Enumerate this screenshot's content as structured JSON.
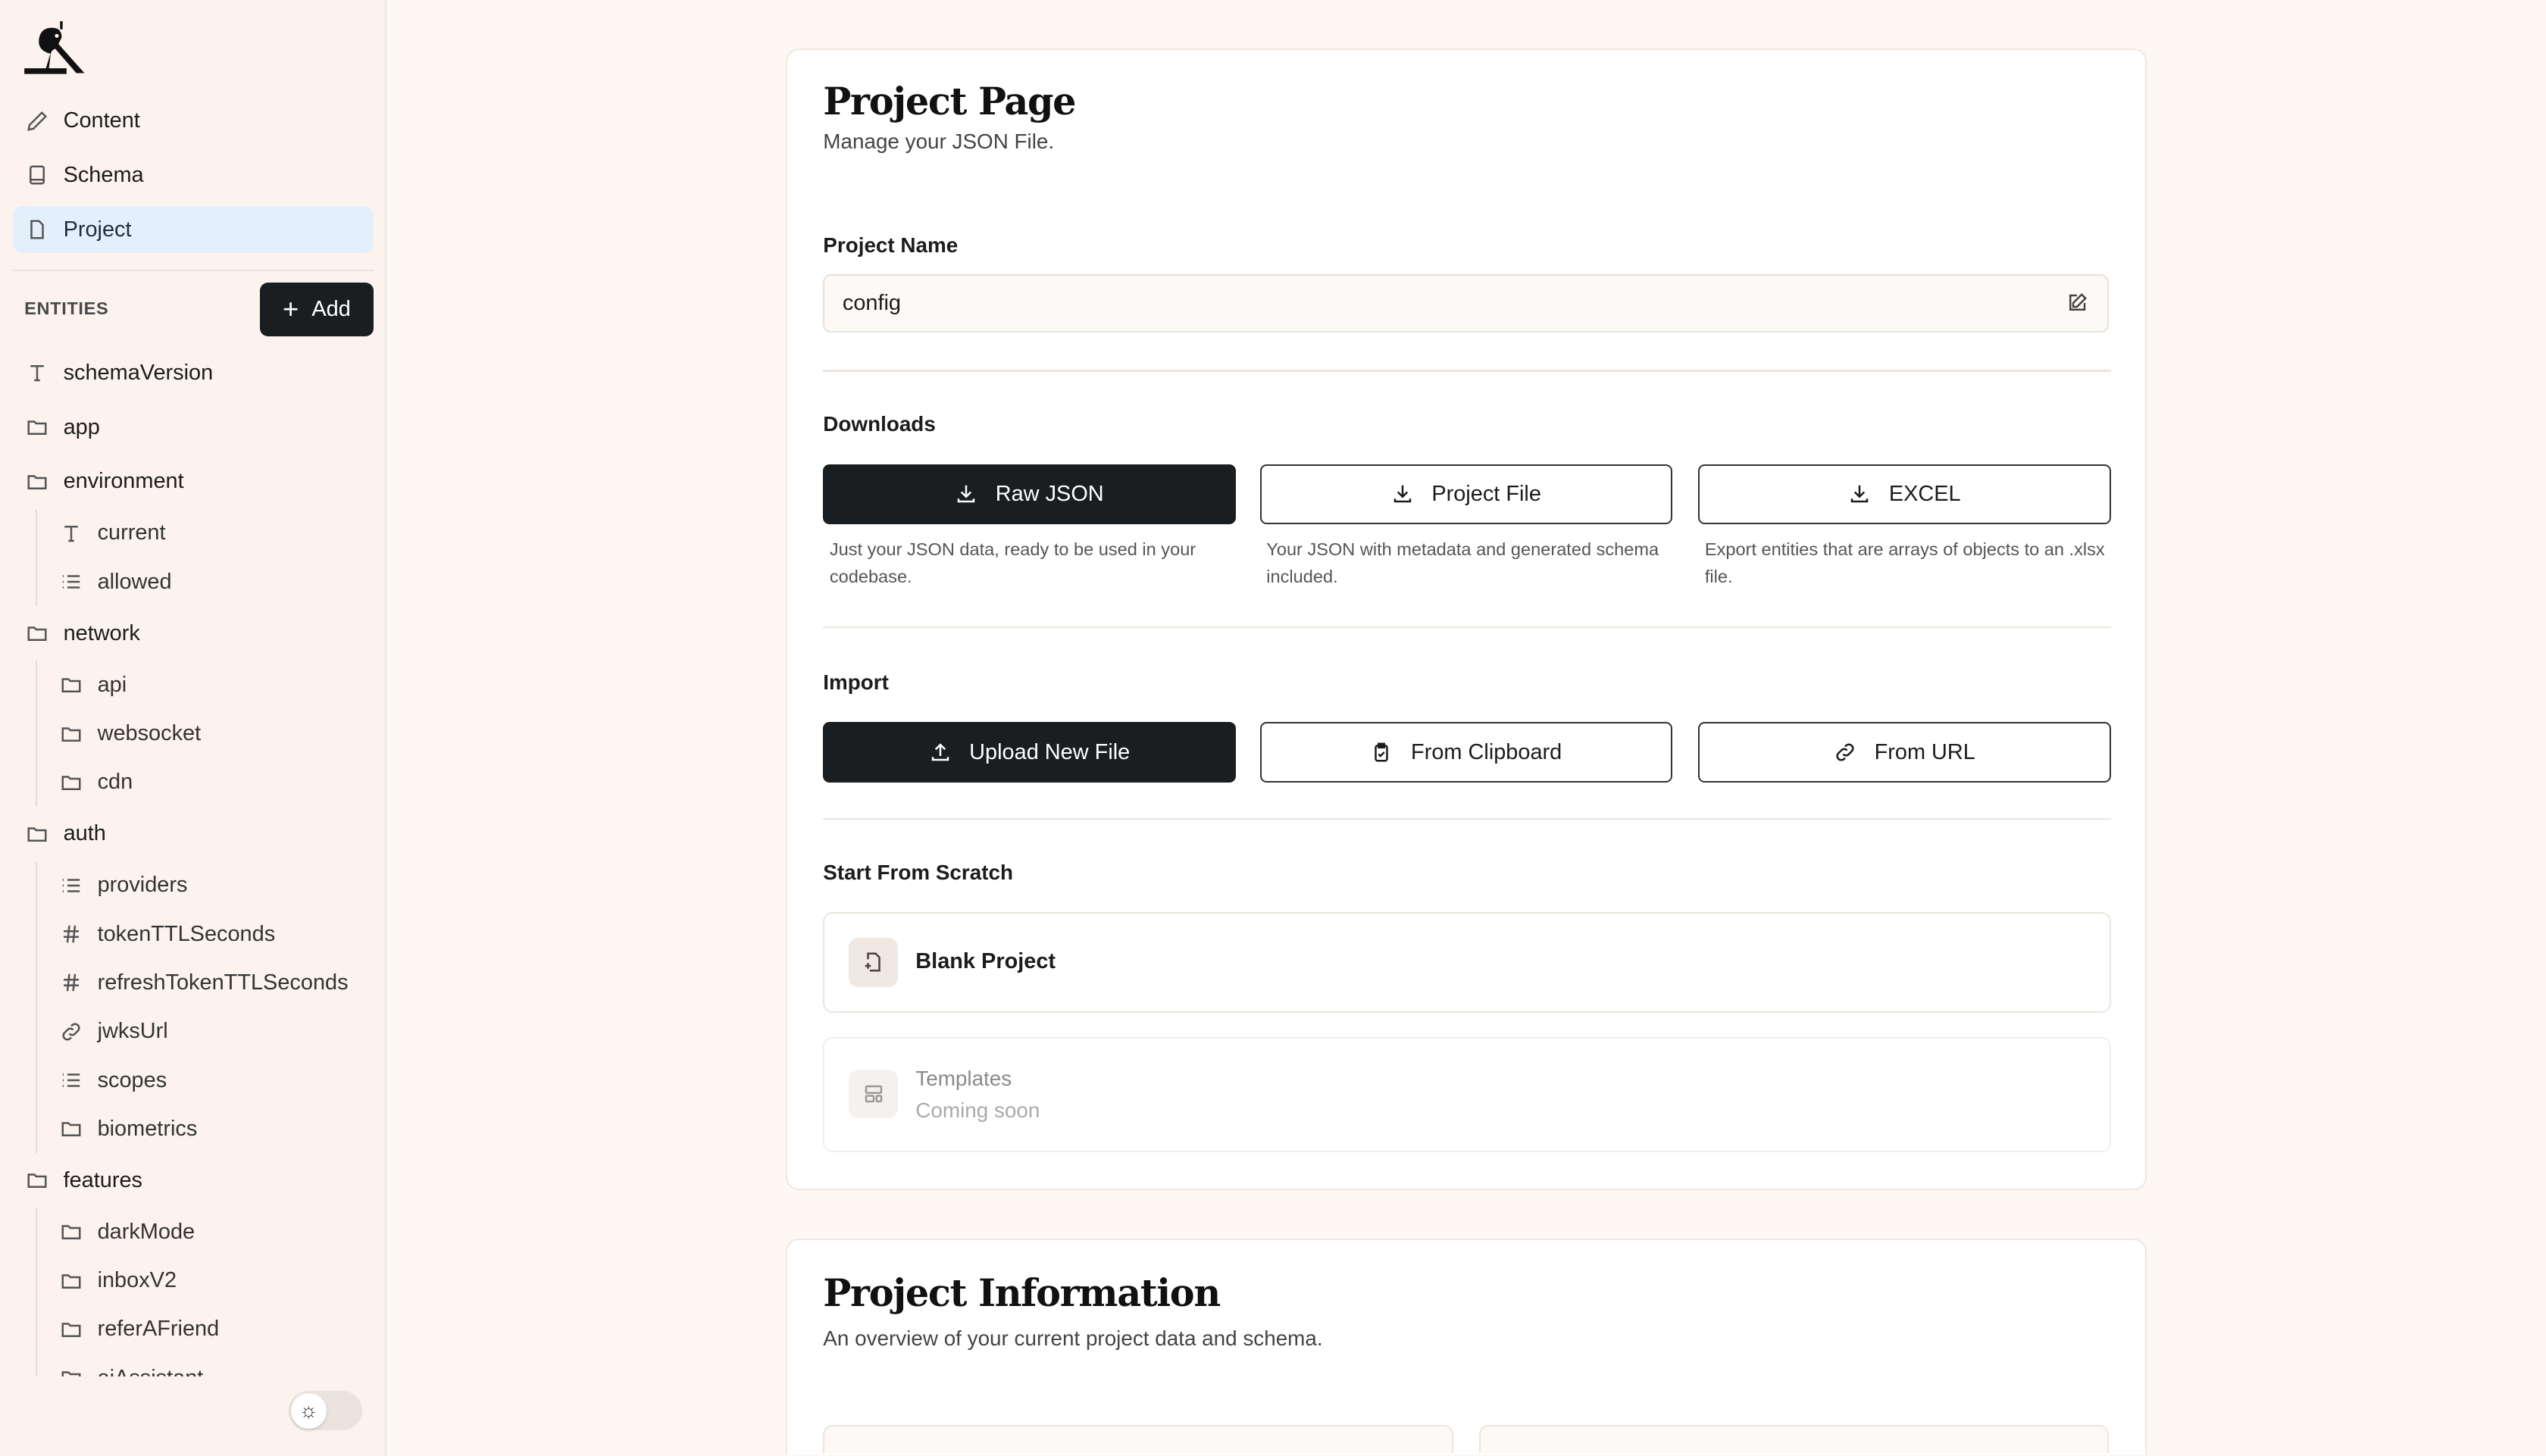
{
  "sidebar": {
    "nav": [
      {
        "label": "Content",
        "icon": "pencil-icon"
      },
      {
        "label": "Schema",
        "icon": "book-icon"
      },
      {
        "label": "Project",
        "icon": "file-icon",
        "active": true
      }
    ],
    "entities_label": "ENTITIES",
    "add_label": "Add",
    "tree": [
      {
        "label": "schemaVersion",
        "type": "text",
        "level": 0
      },
      {
        "label": "app",
        "type": "folder",
        "level": 0
      },
      {
        "label": "environment",
        "type": "folder",
        "level": 0
      },
      {
        "label": "current",
        "type": "text",
        "level": 1
      },
      {
        "label": "allowed",
        "type": "list",
        "level": 1
      },
      {
        "label": "network",
        "type": "folder",
        "level": 0
      },
      {
        "label": "api",
        "type": "folder",
        "level": 1
      },
      {
        "label": "websocket",
        "type": "folder",
        "level": 1
      },
      {
        "label": "cdn",
        "type": "folder",
        "level": 1
      },
      {
        "label": "auth",
        "type": "folder",
        "level": 0
      },
      {
        "label": "providers",
        "type": "list",
        "level": 1
      },
      {
        "label": "tokenTTLSeconds",
        "type": "number",
        "level": 1
      },
      {
        "label": "refreshTokenTTLSeconds",
        "type": "number",
        "level": 1
      },
      {
        "label": "jwksUrl",
        "type": "link",
        "level": 1
      },
      {
        "label": "scopes",
        "type": "list",
        "level": 1
      },
      {
        "label": "biometrics",
        "type": "folder",
        "level": 1
      },
      {
        "label": "features",
        "type": "folder",
        "level": 0
      },
      {
        "label": "darkMode",
        "type": "folder",
        "level": 1
      },
      {
        "label": "inboxV2",
        "type": "folder",
        "level": 1
      },
      {
        "label": "referAFriend",
        "type": "folder",
        "level": 1
      },
      {
        "label": "aiAssistant",
        "type": "folder",
        "level": 1
      }
    ],
    "theme_toggle_icon": "sun-icon"
  },
  "project_page": {
    "title": "Project Page",
    "subtitle": "Manage your JSON File.",
    "project_name_label": "Project Name",
    "project_name_value": "config",
    "downloads_label": "Downloads",
    "downloads": [
      {
        "label": "Raw JSON",
        "desc": "Just your JSON data, ready to be used in your codebase."
      },
      {
        "label": "Project File",
        "desc": "Your JSON with metadata and generated schema included."
      },
      {
        "label": "EXCEL",
        "desc": "Export entities that are arrays of objects to an .xlsx file."
      }
    ],
    "import_label": "Import",
    "imports": [
      {
        "label": "Upload New File",
        "icon": "upload-icon"
      },
      {
        "label": "From Clipboard",
        "icon": "clipboard-icon"
      },
      {
        "label": "From URL",
        "icon": "link-icon"
      }
    ],
    "scratch_label": "Start From Scratch",
    "blank_project": "Blank Project",
    "templates": "Templates",
    "templates_status": "Coming soon"
  },
  "project_info": {
    "title": "Project Information",
    "subtitle": "An overview of your current project data and schema."
  },
  "colors": {
    "accent_dark": "#1b1e20",
    "active_nav": "#e4effc",
    "sidebar_bg": "#fcf3ee"
  }
}
